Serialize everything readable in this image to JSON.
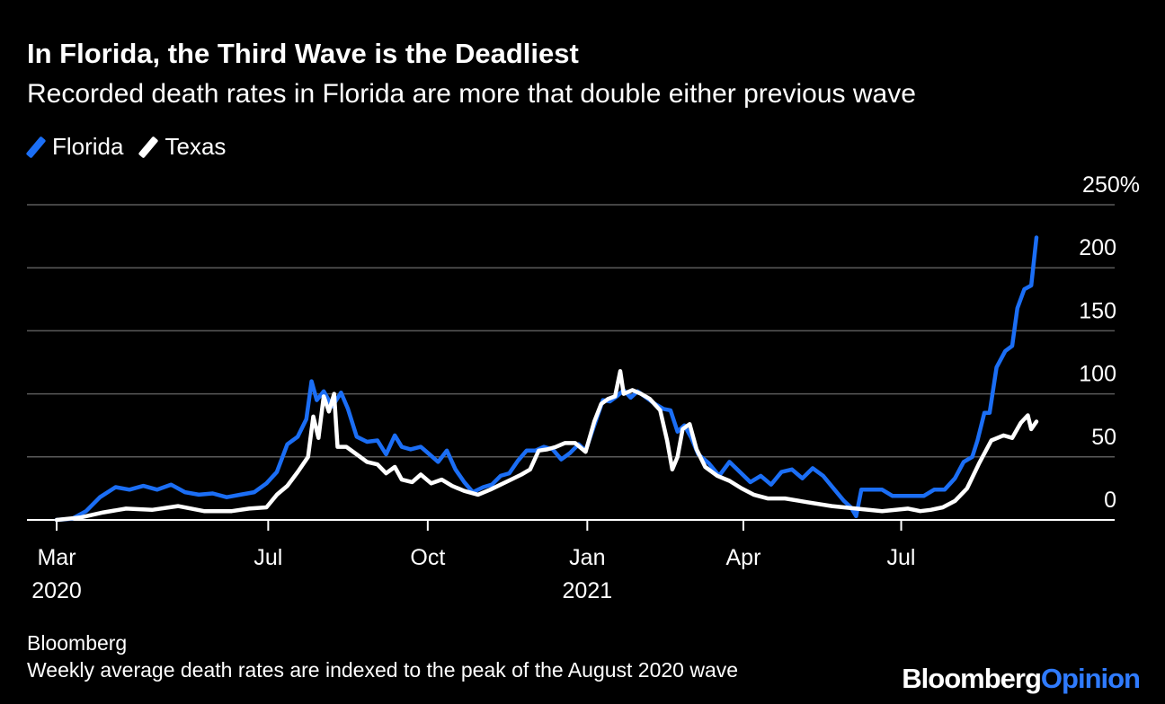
{
  "title": "In Florida, the Third Wave is the Deadliest",
  "subtitle": "Recorded death rates in Florida are more that double either previous wave",
  "legend": [
    {
      "label": "Florida",
      "color": "#1b6ef5"
    },
    {
      "label": "Texas",
      "color": "#ffffff"
    }
  ],
  "footer": {
    "source": "Bloomberg",
    "note": "Weekly average death rates are indexed to the peak of the August 2020 wave",
    "brand_part1": "Bloomberg",
    "brand_part2": "Opinion"
  },
  "chart_data": {
    "type": "line",
    "x_axis": {
      "ticks": [
        {
          "date": "2020-03-01",
          "label": "Mar",
          "sublabel": "2020"
        },
        {
          "date": "2020-07-01",
          "label": "Jul",
          "sublabel": ""
        },
        {
          "date": "2020-10-01",
          "label": "Oct",
          "sublabel": ""
        },
        {
          "date": "2021-01-01",
          "label": "Jan",
          "sublabel": "2021"
        },
        {
          "date": "2021-04-01",
          "label": "Apr",
          "sublabel": ""
        },
        {
          "date": "2021-07-01",
          "label": "Jul",
          "sublabel": ""
        }
      ],
      "range": [
        "2020-03-01",
        "2021-09-30"
      ]
    },
    "y_axis": {
      "ticks": [
        {
          "value": 0,
          "label": "0"
        },
        {
          "value": 50,
          "label": "50"
        },
        {
          "value": 100,
          "label": "100"
        },
        {
          "value": 150,
          "label": "150"
        },
        {
          "value": 200,
          "label": "200"
        },
        {
          "value": 250,
          "label": "250%"
        }
      ],
      "range": [
        -1,
        250
      ],
      "grid": true
    },
    "series": [
      {
        "name": "Florida",
        "color": "#1b6ef5",
        "points": [
          [
            "2020-03-01",
            0
          ],
          [
            "2020-03-10",
            1
          ],
          [
            "2020-03-18",
            7
          ],
          [
            "2020-03-26",
            18
          ],
          [
            "2020-04-04",
            26
          ],
          [
            "2020-04-12",
            24
          ],
          [
            "2020-04-20",
            27
          ],
          [
            "2020-04-28",
            24
          ],
          [
            "2020-05-06",
            28
          ],
          [
            "2020-05-14",
            22
          ],
          [
            "2020-05-22",
            20
          ],
          [
            "2020-05-30",
            21
          ],
          [
            "2020-06-07",
            18
          ],
          [
            "2020-06-15",
            20
          ],
          [
            "2020-06-23",
            22
          ],
          [
            "2020-06-30",
            29
          ],
          [
            "2020-07-06",
            38
          ],
          [
            "2020-07-12",
            60
          ],
          [
            "2020-07-18",
            66
          ],
          [
            "2020-07-23",
            80
          ],
          [
            "2020-07-26",
            110
          ],
          [
            "2020-07-29",
            95
          ],
          [
            "2020-08-02",
            102
          ],
          [
            "2020-08-07",
            90
          ],
          [
            "2020-08-12",
            101
          ],
          [
            "2020-08-16",
            88
          ],
          [
            "2020-08-21",
            66
          ],
          [
            "2020-08-27",
            62
          ],
          [
            "2020-09-02",
            63
          ],
          [
            "2020-09-07",
            52
          ],
          [
            "2020-09-12",
            67
          ],
          [
            "2020-09-16",
            58
          ],
          [
            "2020-09-21",
            56
          ],
          [
            "2020-09-27",
            58
          ],
          [
            "2020-10-02",
            52
          ],
          [
            "2020-10-07",
            46
          ],
          [
            "2020-10-12",
            55
          ],
          [
            "2020-10-17",
            40
          ],
          [
            "2020-10-22",
            30
          ],
          [
            "2020-10-27",
            22
          ],
          [
            "2020-11-02",
            26
          ],
          [
            "2020-11-07",
            28
          ],
          [
            "2020-11-12",
            35
          ],
          [
            "2020-11-17",
            37
          ],
          [
            "2020-11-22",
            47
          ],
          [
            "2020-11-27",
            55
          ],
          [
            "2020-12-02",
            55
          ],
          [
            "2020-12-07",
            58
          ],
          [
            "2020-12-12",
            56
          ],
          [
            "2020-12-17",
            48
          ],
          [
            "2020-12-22",
            53
          ],
          [
            "2020-12-27",
            60
          ],
          [
            "2020-12-31",
            55
          ],
          [
            "2021-01-05",
            75
          ],
          [
            "2021-01-10",
            95
          ],
          [
            "2021-01-14",
            94
          ],
          [
            "2021-01-18",
            98
          ],
          [
            "2021-01-22",
            103
          ],
          [
            "2021-01-26",
            97
          ],
          [
            "2021-01-30",
            102
          ],
          [
            "2021-02-04",
            97
          ],
          [
            "2021-02-09",
            92
          ],
          [
            "2021-02-14",
            88
          ],
          [
            "2021-02-18",
            87
          ],
          [
            "2021-02-22",
            70
          ],
          [
            "2021-02-26",
            75
          ],
          [
            "2021-03-02",
            65
          ],
          [
            "2021-03-06",
            52
          ],
          [
            "2021-03-12",
            45
          ],
          [
            "2021-03-18",
            35
          ],
          [
            "2021-03-24",
            46
          ],
          [
            "2021-03-30",
            38
          ],
          [
            "2021-04-05",
            30
          ],
          [
            "2021-04-11",
            35
          ],
          [
            "2021-04-17",
            28
          ],
          [
            "2021-04-23",
            38
          ],
          [
            "2021-04-29",
            40
          ],
          [
            "2021-05-05",
            33
          ],
          [
            "2021-05-11",
            41
          ],
          [
            "2021-05-17",
            35
          ],
          [
            "2021-05-23",
            25
          ],
          [
            "2021-05-29",
            15
          ],
          [
            "2021-06-02",
            10
          ],
          [
            "2021-06-05",
            3
          ],
          [
            "2021-06-08",
            24
          ],
          [
            "2021-06-14",
            24
          ],
          [
            "2021-06-20",
            24
          ],
          [
            "2021-06-26",
            19
          ],
          [
            "2021-07-02",
            19
          ],
          [
            "2021-07-08",
            19
          ],
          [
            "2021-07-14",
            19
          ],
          [
            "2021-07-20",
            24
          ],
          [
            "2021-07-26",
            24
          ],
          [
            "2021-08-01",
            33
          ],
          [
            "2021-08-06",
            46
          ],
          [
            "2021-08-11",
            50
          ],
          [
            "2021-08-14",
            63
          ],
          [
            "2021-08-18",
            85
          ],
          [
            "2021-08-21",
            85
          ],
          [
            "2021-08-25",
            121
          ],
          [
            "2021-08-30",
            134
          ],
          [
            "2021-09-03",
            138
          ],
          [
            "2021-09-06",
            168
          ],
          [
            "2021-09-10",
            183
          ],
          [
            "2021-09-14",
            186
          ],
          [
            "2021-09-17",
            224
          ]
        ]
      },
      {
        "name": "Texas",
        "color": "#ffffff",
        "points": [
          [
            "2020-03-01",
            0
          ],
          [
            "2020-03-15",
            2
          ],
          [
            "2020-03-28",
            6
          ],
          [
            "2020-04-10",
            9
          ],
          [
            "2020-04-25",
            8
          ],
          [
            "2020-05-10",
            11
          ],
          [
            "2020-05-25",
            7
          ],
          [
            "2020-06-10",
            7
          ],
          [
            "2020-06-20",
            9
          ],
          [
            "2020-06-30",
            10
          ],
          [
            "2020-07-06",
            20
          ],
          [
            "2020-07-12",
            27
          ],
          [
            "2020-07-18",
            38
          ],
          [
            "2020-07-24",
            50
          ],
          [
            "2020-07-27",
            82
          ],
          [
            "2020-07-30",
            65
          ],
          [
            "2020-08-02",
            98
          ],
          [
            "2020-08-05",
            86
          ],
          [
            "2020-08-08",
            100
          ],
          [
            "2020-08-10",
            58
          ],
          [
            "2020-08-15",
            58
          ],
          [
            "2020-08-21",
            52
          ],
          [
            "2020-08-27",
            46
          ],
          [
            "2020-09-02",
            44
          ],
          [
            "2020-09-07",
            37
          ],
          [
            "2020-09-12",
            42
          ],
          [
            "2020-09-16",
            32
          ],
          [
            "2020-09-22",
            30
          ],
          [
            "2020-09-27",
            36
          ],
          [
            "2020-10-03",
            29
          ],
          [
            "2020-10-09",
            32
          ],
          [
            "2020-10-15",
            27
          ],
          [
            "2020-10-22",
            23
          ],
          [
            "2020-10-30",
            20
          ],
          [
            "2020-11-06",
            24
          ],
          [
            "2020-11-12",
            28
          ],
          [
            "2020-11-18",
            32
          ],
          [
            "2020-11-24",
            36
          ],
          [
            "2020-11-29",
            40
          ],
          [
            "2020-12-04",
            55
          ],
          [
            "2020-12-09",
            56
          ],
          [
            "2020-12-14",
            58
          ],
          [
            "2020-12-19",
            61
          ],
          [
            "2020-12-25",
            61
          ],
          [
            "2020-12-31",
            54
          ],
          [
            "2021-01-05",
            78
          ],
          [
            "2021-01-09",
            92
          ],
          [
            "2021-01-13",
            96
          ],
          [
            "2021-01-17",
            98
          ],
          [
            "2021-01-20",
            118
          ],
          [
            "2021-01-22",
            100
          ],
          [
            "2021-01-27",
            103
          ],
          [
            "2021-02-01",
            100
          ],
          [
            "2021-02-06",
            96
          ],
          [
            "2021-02-12",
            87
          ],
          [
            "2021-02-16",
            63
          ],
          [
            "2021-02-19",
            40
          ],
          [
            "2021-02-22",
            50
          ],
          [
            "2021-02-25",
            72
          ],
          [
            "2021-03-01",
            76
          ],
          [
            "2021-03-05",
            56
          ],
          [
            "2021-03-10",
            42
          ],
          [
            "2021-03-17",
            35
          ],
          [
            "2021-03-24",
            31
          ],
          [
            "2021-03-31",
            25
          ],
          [
            "2021-04-07",
            20
          ],
          [
            "2021-04-15",
            17
          ],
          [
            "2021-04-25",
            17
          ],
          [
            "2021-05-08",
            14
          ],
          [
            "2021-05-22",
            11
          ],
          [
            "2021-06-05",
            9
          ],
          [
            "2021-06-20",
            7
          ],
          [
            "2021-07-05",
            9
          ],
          [
            "2021-07-12",
            7
          ],
          [
            "2021-07-18",
            8
          ],
          [
            "2021-07-25",
            10
          ],
          [
            "2021-08-01",
            15
          ],
          [
            "2021-08-08",
            25
          ],
          [
            "2021-08-15",
            45
          ],
          [
            "2021-08-22",
            63
          ],
          [
            "2021-08-29",
            67
          ],
          [
            "2021-09-03",
            65
          ],
          [
            "2021-09-08",
            77
          ],
          [
            "2021-09-12",
            83
          ],
          [
            "2021-09-14",
            72
          ],
          [
            "2021-09-17",
            78
          ]
        ]
      }
    ]
  }
}
